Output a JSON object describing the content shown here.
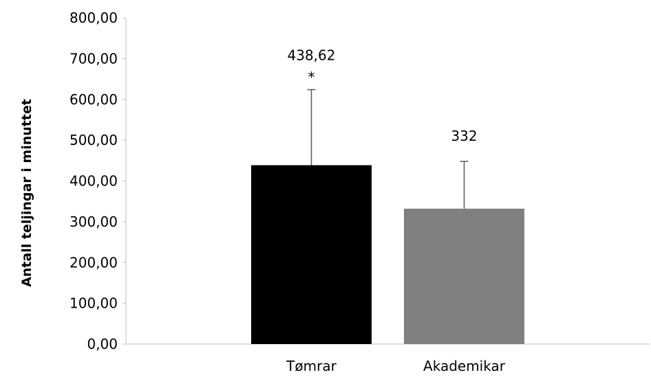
{
  "chart_data": {
    "type": "bar",
    "categories": [
      "Tømrar",
      "Akademikar"
    ],
    "values": [
      438.62,
      332
    ],
    "error_upper": [
      624,
      448
    ],
    "data_labels": [
      "438,62",
      "332"
    ],
    "significance_marks": [
      "*",
      ""
    ],
    "bar_colors": [
      "#000000",
      "#808080"
    ],
    "ylabel": "Antall teljingar i minuttet",
    "ylim": [
      0,
      800
    ],
    "y_ticks": [
      0,
      100,
      200,
      300,
      400,
      500,
      600,
      700,
      800
    ],
    "y_tick_labels": [
      "0,00",
      "100,00",
      "200,00",
      "300,00",
      "400,00",
      "500,00",
      "600,00",
      "700,00",
      "800,00"
    ],
    "grid": false,
    "legend": "none"
  }
}
